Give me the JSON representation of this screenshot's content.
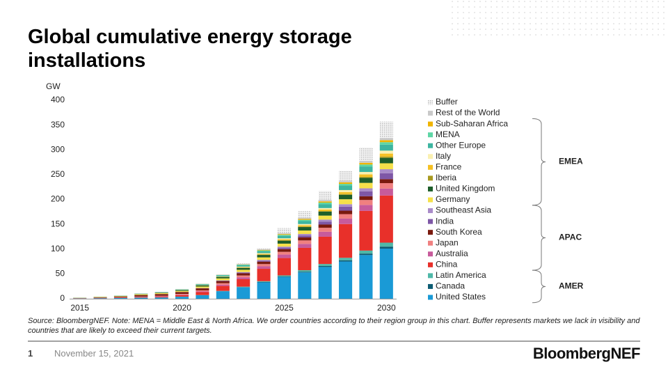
{
  "chart_data": {
    "type": "stacked_bar",
    "title": "Global cumulative energy storage installations",
    "y_unit": "GW",
    "source": "Source: BloombergNEF. Note: MENA = Middle East & North Africa. We order countries according to their region group in this chart. Buffer represents markets we lack in visibility and countries that are likely to exceed their current targets.",
    "categories": [
      "2015",
      null,
      null,
      null,
      null,
      "2020",
      null,
      null,
      null,
      null,
      "2025",
      null,
      null,
      null,
      null,
      "2030"
    ],
    "ylim": [
      0,
      400
    ],
    "yticks": [
      0,
      50,
      100,
      150,
      200,
      250,
      300,
      350,
      400
    ],
    "grid": false,
    "series": [
      {
        "name": "United States",
        "color": "#1a9ad6",
        "values": [
          0.5,
          1,
          1.5,
          2,
          2.5,
          4,
          7,
          15,
          23,
          33,
          44,
          53,
          64,
          75,
          88,
          101
        ]
      },
      {
        "name": "Canada",
        "color": "#0d5c73",
        "values": [
          0,
          0,
          0,
          0,
          0,
          0,
          0.1,
          0.3,
          0.5,
          0.8,
          1,
          1.5,
          2,
          2.5,
          3,
          4
        ]
      },
      {
        "name": "Latin America",
        "color": "#4fb8a8",
        "values": [
          0,
          0,
          0,
          0.1,
          0.1,
          0.2,
          0.3,
          0.5,
          0.8,
          1.5,
          2,
          3,
          4,
          5,
          6,
          8
        ]
      },
      {
        "name": "China",
        "color": "#e8302a",
        "values": [
          0.2,
          0.4,
          0.6,
          1,
          1.5,
          3,
          6,
          10,
          15,
          25,
          35,
          45,
          55,
          68,
          80,
          95
        ]
      },
      {
        "name": "Australia",
        "color": "#c75b9b",
        "values": [
          0.1,
          0.2,
          0.3,
          0.5,
          0.8,
          1,
          1.5,
          2.5,
          4,
          5,
          7,
          8,
          10,
          11,
          12,
          14
        ]
      },
      {
        "name": "Japan",
        "color": "#f08080",
        "values": [
          0.2,
          0.3,
          0.5,
          0.7,
          1,
          1.5,
          2,
          3,
          3.5,
          4.5,
          5.5,
          7,
          8,
          9,
          10,
          11
        ]
      },
      {
        "name": "South Korea",
        "color": "#7a1a0e",
        "values": [
          0.3,
          0.8,
          1.5,
          3,
          3.5,
          3.7,
          4,
          4.2,
          4.5,
          5,
          5.5,
          6,
          6.5,
          7,
          7.5,
          8
        ]
      },
      {
        "name": "India",
        "color": "#7e57a6",
        "values": [
          0,
          0,
          0,
          0,
          0.1,
          0.2,
          0.4,
          1,
          1.5,
          2,
          3,
          4,
          6,
          8,
          10,
          12
        ]
      },
      {
        "name": "Southeast Asia",
        "color": "#a98bc9",
        "values": [
          0,
          0,
          0,
          0.1,
          0.1,
          0.2,
          0.3,
          0.5,
          1,
          1.5,
          2,
          3,
          4,
          5,
          6,
          8
        ]
      },
      {
        "name": "Germany",
        "color": "#f5e04a",
        "values": [
          0.5,
          0.8,
          1,
          1.5,
          1.8,
          2,
          3,
          4,
          4.5,
          5,
          6,
          7,
          8,
          10,
          11,
          12
        ]
      },
      {
        "name": "United Kingdom",
        "color": "#1e5e2a",
        "values": [
          0.2,
          0.3,
          0.5,
          0.7,
          0.9,
          1.5,
          2.5,
          3,
          4,
          5,
          6,
          7,
          8,
          9,
          10,
          11
        ]
      },
      {
        "name": "Iberia",
        "color": "#a89a20",
        "values": [
          0,
          0,
          0,
          0,
          0,
          0,
          0.1,
          0.2,
          0.4,
          0.6,
          0.8,
          1,
          1.2,
          1.5,
          2,
          2.5
        ]
      },
      {
        "name": "France",
        "color": "#f5c023",
        "values": [
          0,
          0,
          0,
          0.1,
          0.1,
          0.2,
          0.3,
          0.5,
          1,
          1.5,
          2,
          2.5,
          3,
          4,
          5,
          6
        ]
      },
      {
        "name": "Italy",
        "color": "#faf0b0",
        "values": [
          0,
          0,
          0,
          0.1,
          0.1,
          0.2,
          0.3,
          0.5,
          1,
          1.5,
          2,
          2.5,
          3,
          4,
          5,
          6
        ]
      },
      {
        "name": "Other Europe",
        "color": "#3db5a0",
        "values": [
          0.1,
          0.2,
          0.3,
          0.5,
          0.7,
          1,
          1.5,
          2,
          3,
          4,
          5,
          6,
          8,
          9,
          11,
          12
        ]
      },
      {
        "name": "MENA",
        "color": "#5ed6a5",
        "values": [
          0,
          0,
          0,
          0,
          0.1,
          0.2,
          0.3,
          0.5,
          1,
          1.5,
          2,
          2.5,
          3,
          3.5,
          4,
          5
        ]
      },
      {
        "name": "Sub-Saharan Africa",
        "color": "#f0b400",
        "values": [
          0,
          0,
          0,
          0,
          0,
          0.1,
          0.2,
          0.3,
          0.5,
          1,
          1.5,
          2,
          2.5,
          3,
          3.5,
          4
        ]
      },
      {
        "name": "Rest of the World",
        "color": "#c9c9c9",
        "values": [
          0.1,
          0.1,
          0.2,
          0.2,
          0.3,
          0.4,
          0.5,
          0.8,
          1,
          1.5,
          2,
          2.5,
          3,
          3.5,
          4,
          4.5
        ]
      },
      {
        "name": "Buffer",
        "color": "#d9d9d9",
        "pattern": "dots",
        "values": [
          0,
          0,
          0,
          0,
          0,
          0,
          0,
          0,
          1,
          2,
          10,
          13,
          18,
          20,
          27,
          33
        ]
      }
    ],
    "regions": [
      {
        "label": "EMEA",
        "first": "Germany",
        "last": "Sub-Saharan Africa"
      },
      {
        "label": "APAC",
        "first": "China",
        "last": "Southeast Asia"
      },
      {
        "label": "AMER",
        "first": "United States",
        "last": "Latin America"
      }
    ]
  },
  "footer": {
    "page": "1",
    "date": "November 15, 2021",
    "logo": "BloombergNEF"
  }
}
